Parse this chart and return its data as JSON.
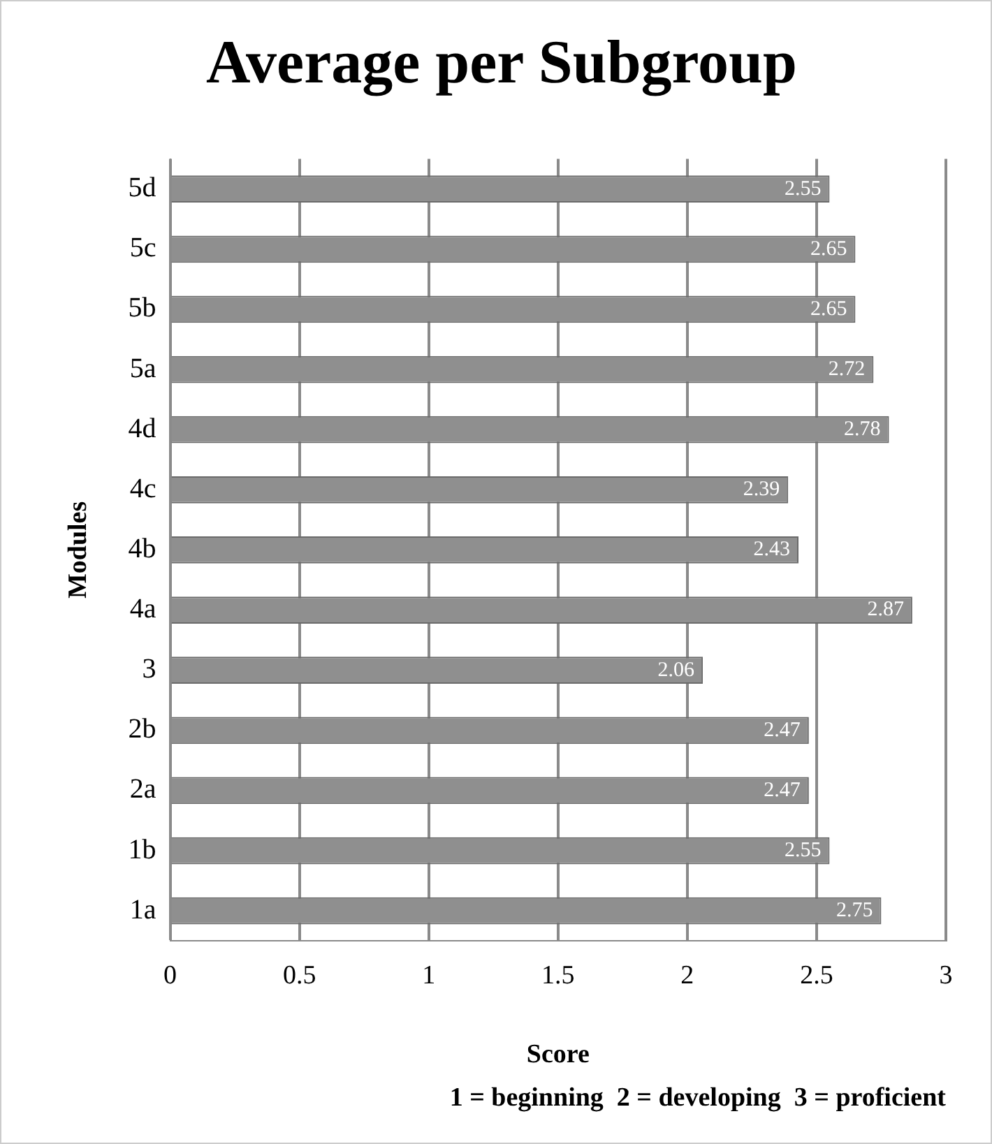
{
  "chart_data": {
    "type": "bar",
    "orientation": "horizontal",
    "title": "Average per Subgroup",
    "xlabel": "Score",
    "ylabel": "Modules",
    "annotations": [
      "1 = beginning  2 = developing  3 = proficient"
    ],
    "categories": [
      "5d",
      "5c",
      "5b",
      "5a",
      "4d",
      "4c",
      "4b",
      "4a",
      "3",
      "2b",
      "2a",
      "1b",
      "1a"
    ],
    "values": [
      2.55,
      2.65,
      2.65,
      2.72,
      2.78,
      2.39,
      2.43,
      2.87,
      2.06,
      2.47,
      2.47,
      2.55,
      2.75
    ],
    "color": "#8f8f8f",
    "xlim": [
      0,
      3
    ],
    "xticks": [
      0,
      0.5,
      1,
      1.5,
      2,
      2.5,
      3
    ],
    "grid": "x",
    "data_labels": true,
    "legend": false
  }
}
